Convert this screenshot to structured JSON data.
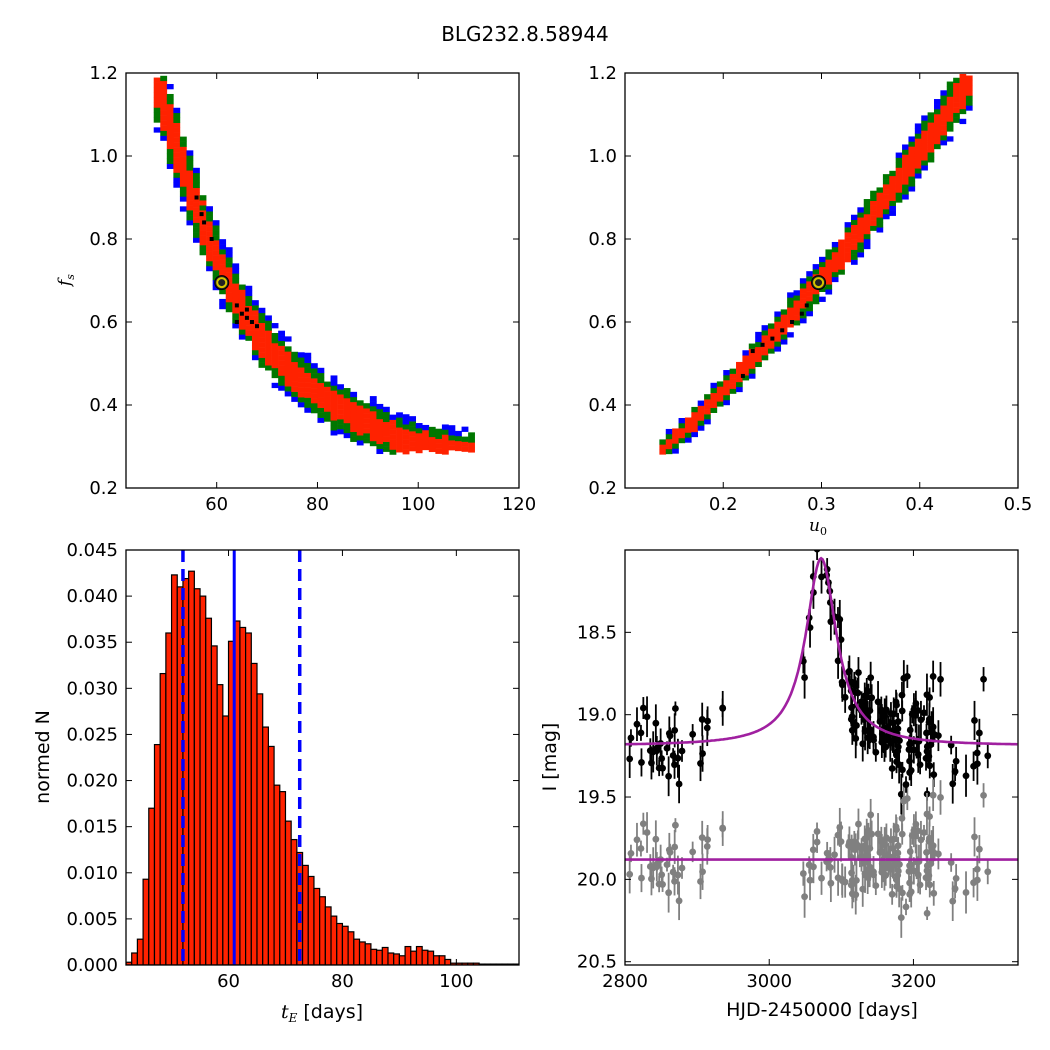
{
  "title": "BLG232.8.58944",
  "chart_data": [
    {
      "type": "heatmap",
      "panel": "top-left",
      "xlabel": "",
      "ylabel": "f_s",
      "xlim": [
        42,
        120
      ],
      "ylim": [
        0.2,
        1.2
      ],
      "xticks": [
        "60",
        "80",
        "100",
        "120"
      ],
      "yticks": [
        "0.2",
        "0.4",
        "0.6",
        "0.8",
        "1.0",
        "1.2"
      ],
      "best_fit": {
        "x": 61,
        "y": 0.695
      },
      "contour_colors": {
        "inner": "#ff2200",
        "middle": "#007700",
        "outer": "#0000ff",
        "samples": "#000000"
      },
      "ridge": [
        [
          47.5,
          1.185
        ],
        [
          51,
          1.06
        ],
        [
          54.5,
          0.93
        ],
        [
          58,
          0.81
        ],
        [
          62,
          0.7
        ],
        [
          67,
          0.59
        ],
        [
          73,
          0.5
        ],
        [
          80,
          0.425
        ],
        [
          88,
          0.365
        ],
        [
          96,
          0.32
        ],
        [
          104,
          0.29
        ],
        [
          111,
          0.28
        ]
      ],
      "samples": [
        [
          56,
          0.9
        ],
        [
          57,
          0.86
        ],
        [
          57.5,
          0.84
        ],
        [
          59,
          0.8
        ],
        [
          64,
          0.64
        ],
        [
          65,
          0.62
        ],
        [
          66,
          0.61
        ],
        [
          67,
          0.6
        ],
        [
          68,
          0.59
        ],
        [
          66,
          0.63
        ],
        [
          64,
          0.6
        ]
      ]
    },
    {
      "type": "heatmap",
      "panel": "top-right",
      "xlabel": "u_0",
      "ylabel": "",
      "xlim": [
        0.1,
        0.5
      ],
      "ylim": [
        0.2,
        1.2
      ],
      "xticks": [
        "0.2",
        "0.3",
        "0.4",
        "0.5"
      ],
      "yticks": [
        "0.2",
        "0.4",
        "0.6",
        "0.8",
        "1.0",
        "1.2"
      ],
      "best_fit": {
        "x": 0.297,
        "y": 0.695
      },
      "contour_colors": {
        "inner": "#ff2200",
        "middle": "#007700",
        "outer": "#0000ff",
        "samples": "#000000"
      },
      "ridge": [
        [
          0.135,
          0.285
        ],
        [
          0.17,
          0.36
        ],
        [
          0.21,
          0.46
        ],
        [
          0.25,
          0.565
        ],
        [
          0.297,
          0.695
        ],
        [
          0.34,
          0.82
        ],
        [
          0.38,
          0.95
        ],
        [
          0.415,
          1.06
        ],
        [
          0.45,
          1.18
        ]
      ],
      "samples": [
        [
          0.23,
          0.53
        ],
        [
          0.24,
          0.545
        ],
        [
          0.25,
          0.56
        ],
        [
          0.26,
          0.58
        ],
        [
          0.27,
          0.6
        ],
        [
          0.28,
          0.62
        ],
        [
          0.285,
          0.64
        ],
        [
          0.22,
          0.47
        ]
      ]
    },
    {
      "type": "bar",
      "panel": "bottom-left",
      "xlabel": "t_E [days]",
      "ylabel": "normed N",
      "xlim": [
        42,
        111
      ],
      "ylim": [
        0,
        0.045
      ],
      "xticks": [
        "60",
        "80",
        "100"
      ],
      "yticks": [
        "0.000",
        "0.005",
        "0.010",
        "0.015",
        "0.020",
        "0.025",
        "0.030",
        "0.035",
        "0.040",
        "0.045"
      ],
      "bin_start": 42,
      "bin_width": 1,
      "values": [
        0.0003,
        0.0013,
        0.0028,
        0.0093,
        0.017,
        0.0239,
        0.0316,
        0.036,
        0.0423,
        0.041,
        0.0419,
        0.0427,
        0.0408,
        0.04,
        0.0376,
        0.0346,
        0.0304,
        0.027,
        0.0351,
        0.0373,
        0.0366,
        0.036,
        0.0327,
        0.0294,
        0.0258,
        0.0237,
        0.0195,
        0.0188,
        0.0156,
        0.0136,
        0.0122,
        0.0108,
        0.0096,
        0.0083,
        0.0074,
        0.0063,
        0.0053,
        0.0045,
        0.0042,
        0.0036,
        0.0028,
        0.0025,
        0.0023,
        0.0017,
        0.0016,
        0.0019,
        0.0013,
        0.0012,
        0.001,
        0.002,
        0.0015,
        0.002,
        0.0016,
        0.0015,
        0.001,
        0.001,
        0.0006,
        0.0002,
        0.0002,
        0.0002,
        0.0002,
        0.0002,
        0.0001,
        0.0001,
        0.0001,
        0.0001,
        0.0001,
        0.0001,
        0.0001
      ],
      "median_line": 61,
      "interval_lines": [
        52,
        72.5
      ],
      "bar_color": "#ff2200",
      "line_color": "#0000ff"
    },
    {
      "type": "scatter",
      "panel": "bottom-right",
      "xlabel": "HJD-2450000 [days]",
      "ylabel": "I [mag]",
      "xlim": [
        2800,
        3345
      ],
      "ylim": [
        20.52,
        18.0
      ],
      "xticks": [
        "2800",
        "3000",
        "3200"
      ],
      "yticks": [
        "18.5",
        "19.0",
        "19.5",
        "20.0",
        "20.5"
      ],
      "model": {
        "t0": 3072,
        "base": 19.19,
        "peak": 18.05,
        "width": 26
      },
      "residual_base": 19.88,
      "series": [
        {
          "name": "data",
          "color": "#000000"
        },
        {
          "name": "residuals",
          "color": "#808080"
        }
      ],
      "model_color": "#a020a0"
    }
  ]
}
